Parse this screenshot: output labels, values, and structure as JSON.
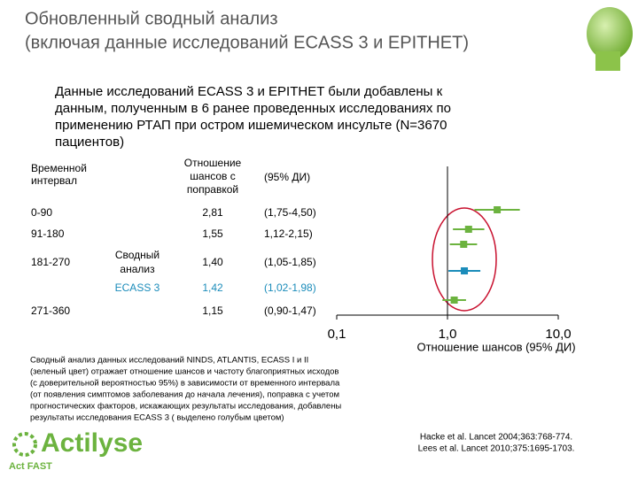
{
  "header": {
    "title_lines": [
      "Обновленный сводный анализ",
      "(включая данные исследований ECASS 3 и EPITHET)"
    ]
  },
  "intro_lines": [
    "Данные исследований ECASS 3 и EPITHET были добавлены к",
    "данным, полученным в 6 ранее проведенных исследованиях по",
    "применению РТАП при остром ишемическом инсульте (N=3670",
    "пациентов)"
  ],
  "chart_data": {
    "type": "forest",
    "column_headers": {
      "interval": [
        "Временной",
        "интервал"
      ],
      "odds": [
        "Отношение",
        "шансов с",
        "поправкой"
      ],
      "ci": "(95% ДИ)"
    },
    "categories": [
      "0-90",
      "91-180",
      "181-270",
      null,
      "271-360"
    ],
    "subgroups": [
      null,
      null,
      [
        "Сводный",
        "анализ"
      ],
      [
        "ECASS 3"
      ],
      null
    ],
    "values": [
      2.81,
      1.55,
      1.4,
      1.42,
      1.15
    ],
    "value_labels": [
      "2,81",
      "1,55",
      "1,40",
      "1,42",
      "1,15"
    ],
    "lower": [
      1.75,
      1.12,
      1.05,
      1.02,
      0.9
    ],
    "upper": [
      4.5,
      2.15,
      1.85,
      1.98,
      1.47
    ],
    "ci_labels": [
      "(1,75-4,50)",
      "1,12-2,15)",
      "(1,05-1,85)",
      "(1,02-1,98)",
      "(0,90-1,47)"
    ],
    "colors": [
      "#6cb33f",
      "#6cb33f",
      "#6cb33f",
      "#1b8cba",
      "#6cb33f"
    ],
    "xlim": [
      0.1,
      10
    ],
    "log_x": true,
    "xticks": [
      {
        "value": 0.1,
        "label": "0,1"
      },
      {
        "value": 1,
        "label": "1,0"
      },
      {
        "value": 10,
        "label": "10,0"
      }
    ],
    "xlabel": "Отношение шансов (95% ДИ)"
  },
  "footnote_lines": [
    "Сводный анализ данных исследований NINDS, ATLANTIS, ECASS I и II",
    "(зеленый цвет) отражает отношение шансов и частоту благоприятных исходов",
    "(с доверительной вероятностью 95%) в зависимости от временного интервала",
    "(от появления симптомов заболевания до начала лечения), поправка с учетом",
    "прогностических факторов, искажающих результаты исследования, добавлены",
    "результаты исследования ECASS 3 ( выделено голубым цветом)"
  ],
  "references": [
    "Hacke et al. Lancet 2004;363:768-774.",
    "Lees et al. Lancet 2010;375:1695-1703."
  ],
  "logo": {
    "brand": "Actilyse",
    "tagline": "Act FAST"
  }
}
